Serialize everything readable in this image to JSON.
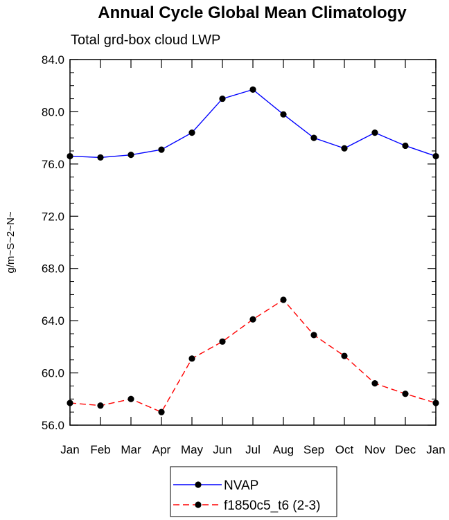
{
  "chart_data": {
    "type": "line",
    "title": "Annual Cycle Global Mean Climatology",
    "subtitle": "Total grd-box cloud LWP",
    "xlabel": "",
    "ylabel": "g/m~S~2~N~",
    "categories": [
      "Jan",
      "Feb",
      "Mar",
      "Apr",
      "May",
      "Jun",
      "Jul",
      "Aug",
      "Sep",
      "Oct",
      "Nov",
      "Dec",
      "Jan"
    ],
    "ylim": [
      56.0,
      84.0
    ],
    "yticks": [
      "56.0",
      "60.0",
      "64.0",
      "68.0",
      "72.0",
      "76.0",
      "80.0",
      "84.0"
    ],
    "series": [
      {
        "name": "NVAP",
        "color": "#0000ff",
        "dash": "solid",
        "values": [
          76.6,
          76.5,
          76.7,
          77.1,
          78.4,
          81.0,
          81.7,
          79.8,
          78.0,
          77.2,
          78.4,
          77.4,
          76.6
        ]
      },
      {
        "name": "f1850c5_t6 (2-3)",
        "color": "#ff0000",
        "dash": "dashed",
        "values": [
          57.7,
          57.5,
          58.0,
          57.0,
          61.1,
          62.4,
          64.1,
          65.6,
          62.9,
          61.3,
          59.2,
          58.4,
          57.7
        ]
      }
    ],
    "legend_position": "bottom-center",
    "grid": false
  }
}
